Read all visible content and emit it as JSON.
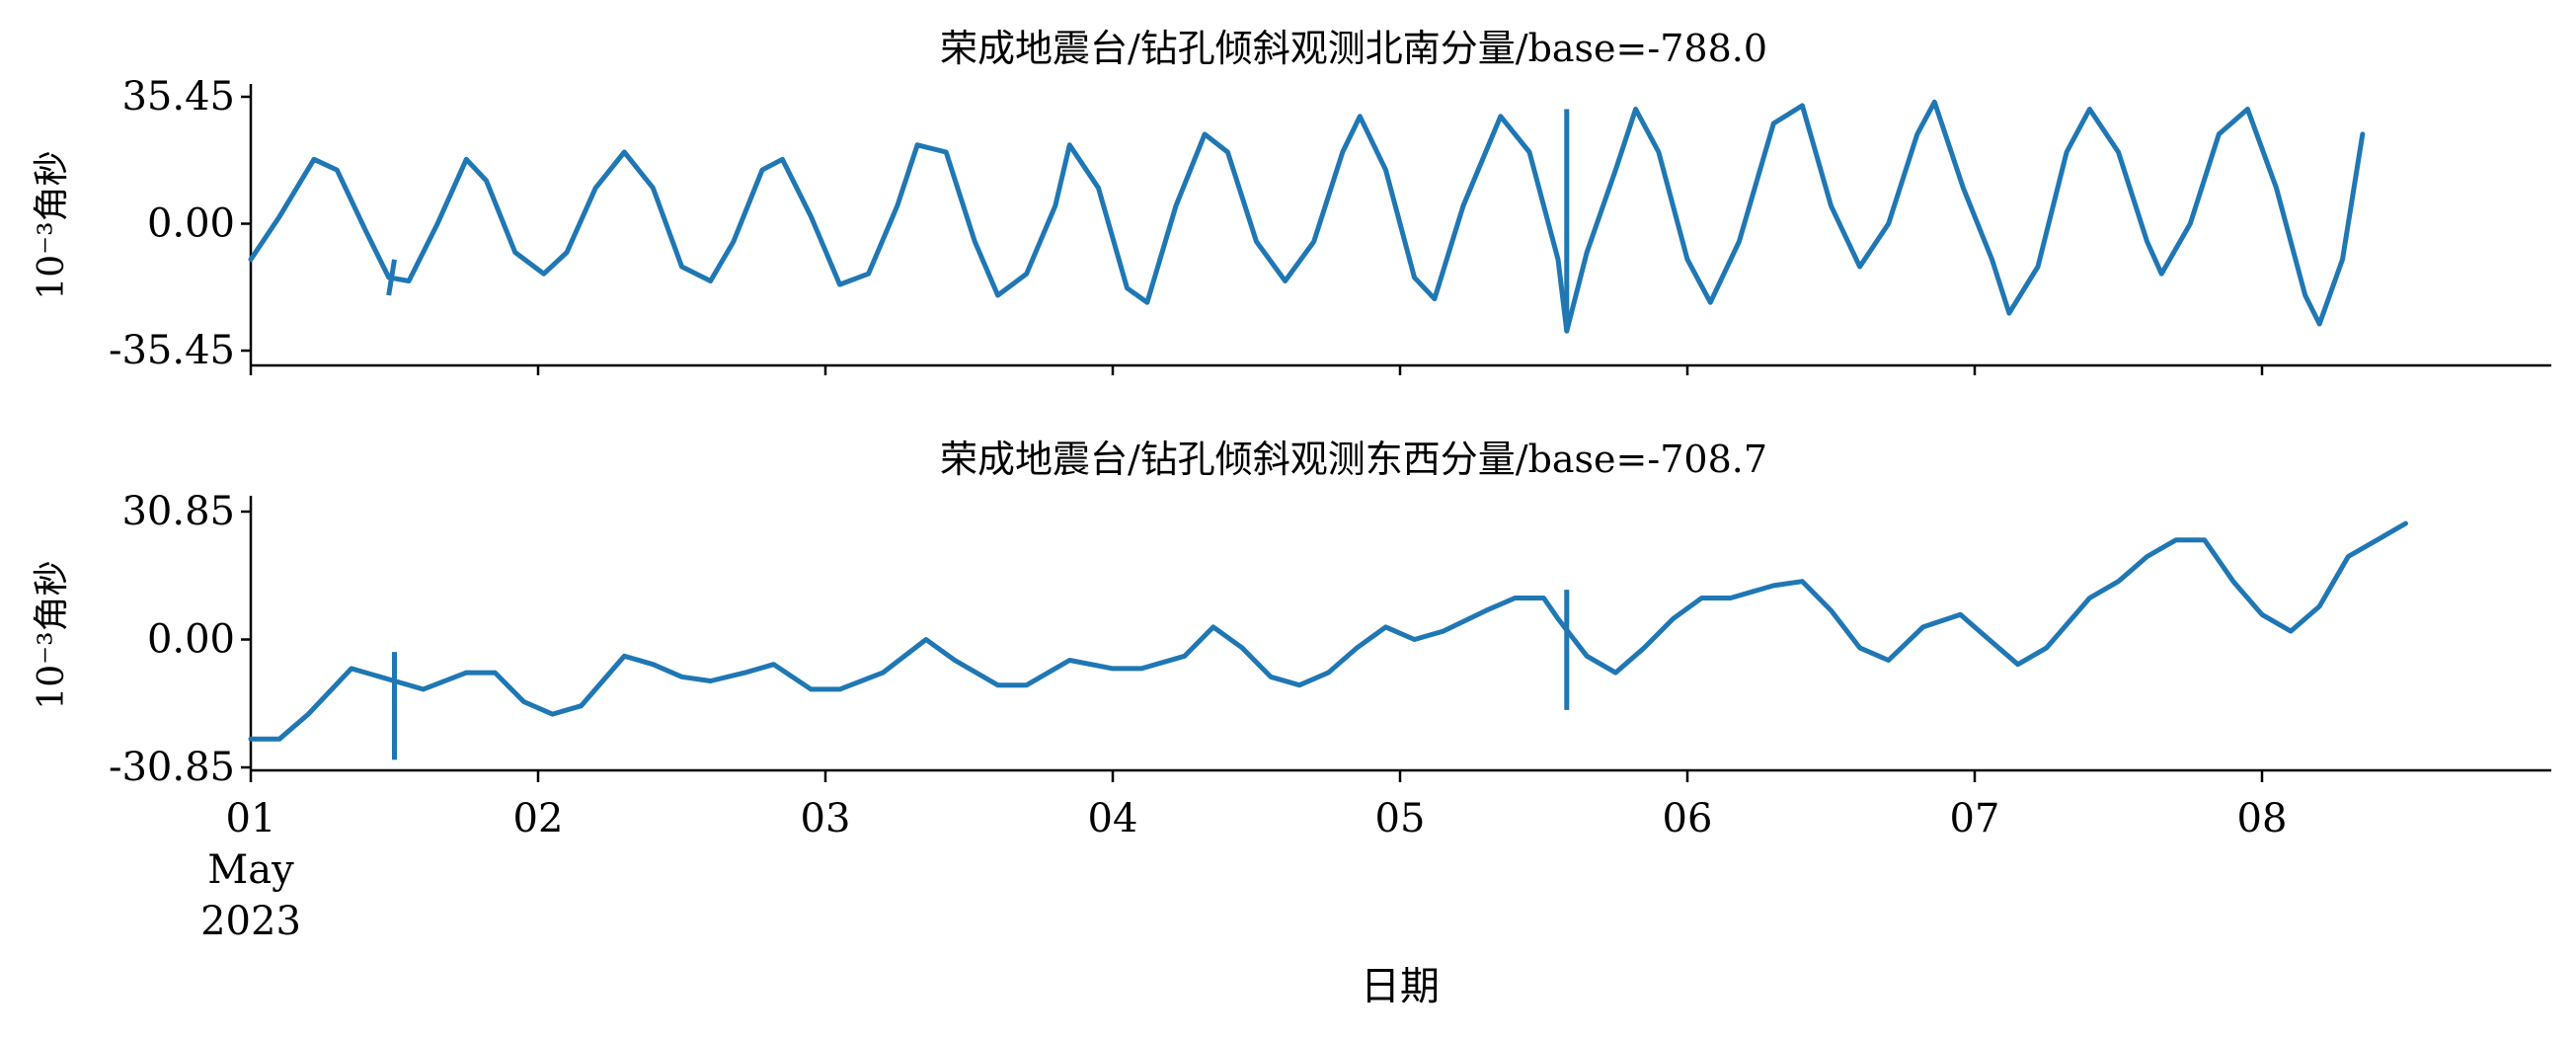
{
  "figure": {
    "xlabel": "日期",
    "line_color": "#1f77b4"
  },
  "chart_data": [
    {
      "type": "line",
      "title": "荣成地震台/钻孔倾斜观测北南分量/base=-788.0",
      "ylabel": "10⁻³角秒",
      "ylim": [
        -35.45,
        35.45
      ],
      "xlim": [
        0,
        8.1
      ],
      "yticks": [
        "35.45",
        "0.00",
        "-35.45"
      ],
      "xticks": [
        {
          "value": 0,
          "label": "01",
          "extra": [
            "May",
            "2023"
          ]
        },
        {
          "value": 1,
          "label": "02"
        },
        {
          "value": 2,
          "label": "03"
        },
        {
          "value": 3,
          "label": "04"
        },
        {
          "value": 4,
          "label": "05"
        },
        {
          "value": 5,
          "label": "06"
        },
        {
          "value": 6,
          "label": "07"
        },
        {
          "value": 7,
          "label": "08"
        }
      ],
      "x_unit": "days since 2023-05-01",
      "series": [
        {
          "values": [
            [
              0.0,
              -10
            ],
            [
              0.1,
              2
            ],
            [
              0.22,
              18
            ],
            [
              0.3,
              15
            ],
            [
              0.4,
              -2
            ],
            [
              0.48,
              -15
            ],
            [
              0.55,
              -16
            ],
            [
              0.65,
              0
            ],
            [
              0.75,
              18
            ],
            [
              0.82,
              12
            ],
            [
              0.92,
              -8
            ],
            [
              1.02,
              -14
            ],
            [
              1.1,
              -8
            ],
            [
              1.2,
              10
            ],
            [
              1.3,
              20
            ],
            [
              1.4,
              10
            ],
            [
              1.5,
              -12
            ],
            [
              1.6,
              -16
            ],
            [
              1.68,
              -5
            ],
            [
              1.78,
              15
            ],
            [
              1.85,
              18
            ],
            [
              1.95,
              2
            ],
            [
              2.05,
              -17
            ],
            [
              2.15,
              -14
            ],
            [
              2.25,
              5
            ],
            [
              2.32,
              22
            ],
            [
              2.42,
              20
            ],
            [
              2.52,
              -5
            ],
            [
              2.6,
              -20
            ],
            [
              2.7,
              -14
            ],
            [
              2.8,
              5
            ],
            [
              2.85,
              22
            ],
            [
              2.95,
              10
            ],
            [
              3.05,
              -18
            ],
            [
              3.12,
              -22
            ],
            [
              3.22,
              5
            ],
            [
              3.32,
              25
            ],
            [
              3.4,
              20
            ],
            [
              3.5,
              -5
            ],
            [
              3.6,
              -16
            ],
            [
              3.7,
              -5
            ],
            [
              3.8,
              20
            ],
            [
              3.86,
              30
            ],
            [
              3.95,
              15
            ],
            [
              4.05,
              -15
            ],
            [
              4.12,
              -21
            ],
            [
              4.22,
              5
            ],
            [
              4.35,
              30
            ],
            [
              4.45,
              20
            ],
            [
              4.55,
              -10
            ],
            [
              4.58,
              -30
            ],
            [
              4.65,
              -8
            ],
            [
              4.75,
              15
            ],
            [
              4.82,
              32
            ],
            [
              4.9,
              20
            ],
            [
              5.0,
              -10
            ],
            [
              5.08,
              -22
            ],
            [
              5.18,
              -5
            ],
            [
              5.3,
              28
            ],
            [
              5.4,
              33
            ],
            [
              5.5,
              5
            ],
            [
              5.6,
              -12
            ],
            [
              5.7,
              0
            ],
            [
              5.8,
              25
            ],
            [
              5.86,
              34
            ],
            [
              5.96,
              10
            ],
            [
              6.06,
              -10
            ],
            [
              6.12,
              -25
            ],
            [
              6.22,
              -12
            ],
            [
              6.32,
              20
            ],
            [
              6.4,
              32
            ],
            [
              6.5,
              20
            ],
            [
              6.6,
              -5
            ],
            [
              6.65,
              -14
            ],
            [
              6.75,
              0
            ],
            [
              6.85,
              25
            ],
            [
              6.95,
              32
            ],
            [
              7.05,
              10
            ],
            [
              7.15,
              -20
            ],
            [
              7.2,
              -28
            ],
            [
              7.28,
              -10
            ],
            [
              7.35,
              25
            ]
          ],
          "spike": [
            [
              0.5,
              -10
            ],
            [
              0.48,
              -20
            ],
            [
              4.58,
              32
            ],
            [
              4.58,
              -30
            ]
          ]
        }
      ]
    },
    {
      "type": "line",
      "title": "荣成地震台/钻孔倾斜观测东西分量/base=-708.7",
      "ylabel": "10⁻³角秒",
      "ylim": [
        -30.85,
        30.85
      ],
      "xlim": [
        0,
        8.1
      ],
      "yticks": [
        "30.85",
        "0.00",
        "-30.85"
      ],
      "xticks": [
        {
          "value": 0,
          "label": "01",
          "extra": [
            "May",
            "2023"
          ]
        },
        {
          "value": 1,
          "label": "02"
        },
        {
          "value": 2,
          "label": "03"
        },
        {
          "value": 3,
          "label": "04"
        },
        {
          "value": 4,
          "label": "05"
        },
        {
          "value": 5,
          "label": "06"
        },
        {
          "value": 6,
          "label": "07"
        },
        {
          "value": 7,
          "label": "08"
        }
      ],
      "x_unit": "days since 2023-05-01",
      "series": [
        {
          "values": [
            [
              0.0,
              -24
            ],
            [
              0.1,
              -24
            ],
            [
              0.2,
              -18
            ],
            [
              0.35,
              -7
            ],
            [
              0.5,
              -10
            ],
            [
              0.6,
              -12
            ],
            [
              0.75,
              -8
            ],
            [
              0.85,
              -8
            ],
            [
              0.95,
              -15
            ],
            [
              1.05,
              -18
            ],
            [
              1.15,
              -16
            ],
            [
              1.3,
              -4
            ],
            [
              1.4,
              -6
            ],
            [
              1.5,
              -9
            ],
            [
              1.6,
              -10
            ],
            [
              1.72,
              -8
            ],
            [
              1.82,
              -6
            ],
            [
              1.95,
              -12
            ],
            [
              2.05,
              -12
            ],
            [
              2.2,
              -8
            ],
            [
              2.35,
              0
            ],
            [
              2.45,
              -5
            ],
            [
              2.6,
              -11
            ],
            [
              2.7,
              -11
            ],
            [
              2.85,
              -5
            ],
            [
              3.0,
              -7
            ],
            [
              3.1,
              -7
            ],
            [
              3.25,
              -4
            ],
            [
              3.35,
              3
            ],
            [
              3.45,
              -2
            ],
            [
              3.55,
              -9
            ],
            [
              3.65,
              -11
            ],
            [
              3.75,
              -8
            ],
            [
              3.85,
              -2
            ],
            [
              3.95,
              3
            ],
            [
              4.05,
              0
            ],
            [
              4.15,
              2
            ],
            [
              4.3,
              7
            ],
            [
              4.4,
              10
            ],
            [
              4.5,
              10
            ],
            [
              4.55,
              5
            ],
            [
              4.65,
              -4
            ],
            [
              4.75,
              -8
            ],
            [
              4.85,
              -2
            ],
            [
              4.95,
              5
            ],
            [
              5.05,
              10
            ],
            [
              5.15,
              10
            ],
            [
              5.3,
              13
            ],
            [
              5.4,
              14
            ],
            [
              5.5,
              7
            ],
            [
              5.6,
              -2
            ],
            [
              5.7,
              -5
            ],
            [
              5.82,
              3
            ],
            [
              5.95,
              6
            ],
            [
              6.05,
              0
            ],
            [
              6.15,
              -6
            ],
            [
              6.25,
              -2
            ],
            [
              6.4,
              10
            ],
            [
              6.5,
              14
            ],
            [
              6.6,
              20
            ],
            [
              6.7,
              24
            ],
            [
              6.8,
              24
            ],
            [
              6.9,
              14
            ],
            [
              7.0,
              6
            ],
            [
              7.1,
              2
            ],
            [
              7.2,
              8
            ],
            [
              7.3,
              20
            ],
            [
              7.4,
              24
            ],
            [
              7.5,
              28
            ]
          ],
          "spike": [
            [
              0.5,
              -3
            ],
            [
              0.5,
              -29
            ],
            [
              4.58,
              12
            ],
            [
              4.58,
              -17
            ]
          ]
        }
      ]
    }
  ]
}
